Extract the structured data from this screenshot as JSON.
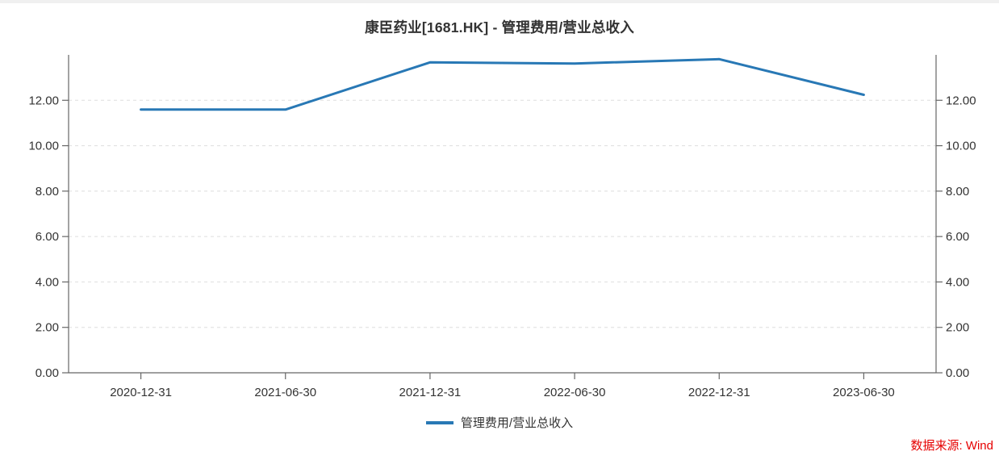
{
  "page": {
    "title": "康臣药业[1681.HK] - 管理费用/营业总收入",
    "source": "数据来源: Wind"
  },
  "legend": {
    "label": "管理费用/营业总收入"
  },
  "colors": {
    "line": "#2878b5",
    "title_text": "#333333",
    "tick_text": "#333333",
    "legend_text": "#333333",
    "source_text": "#e60000",
    "axis": "#666666",
    "grid": "#dedede",
    "top_strip": "#f0f0f0"
  },
  "chart_data": {
    "type": "line",
    "title": "康臣药业[1681.HK] - 管理费用/营业总收入",
    "categories": [
      "2020-12-31",
      "2021-06-30",
      "2021-12-31",
      "2022-06-30",
      "2022-12-31",
      "2023-06-30"
    ],
    "series": [
      {
        "name": "管理费用/营业总收入",
        "values": [
          11.59,
          11.59,
          13.67,
          13.62,
          13.81,
          12.24
        ]
      }
    ],
    "xlabel": "",
    "ylabel": "",
    "ylim": [
      0,
      14
    ],
    "y_ticks": [
      0,
      2,
      4,
      6,
      8,
      10,
      12
    ],
    "y_tick_labels": [
      "0.00",
      "2.00",
      "4.00",
      "6.00",
      "8.00",
      "10.00",
      "12.00"
    ],
    "grid": "horizontal-dashed",
    "dual_y_axis": true,
    "legend_position": "bottom"
  }
}
